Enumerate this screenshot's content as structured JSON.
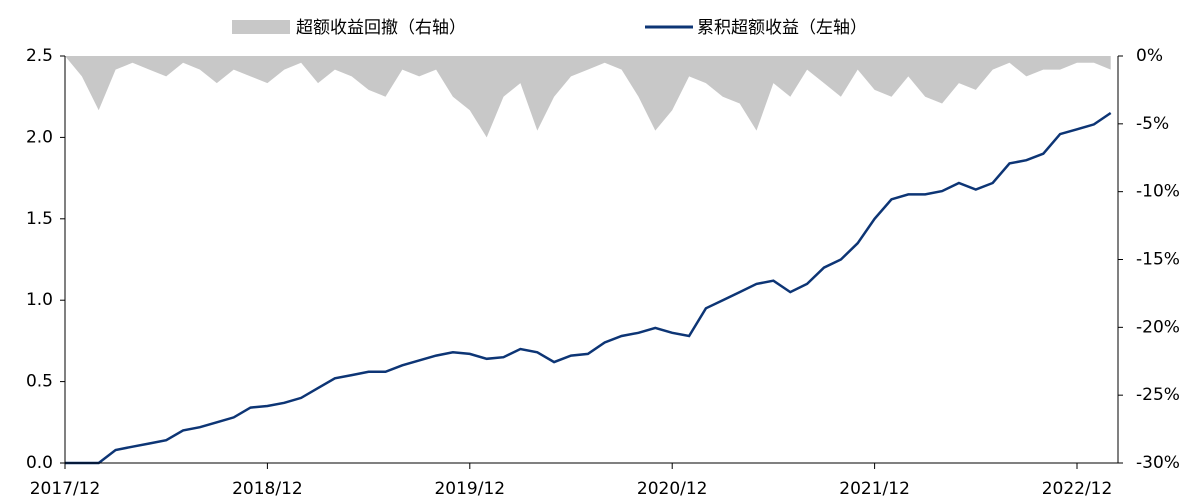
{
  "chart_data": {
    "type": "line-area",
    "categories": [
      "2017/12",
      null,
      null,
      null,
      null,
      null,
      null,
      null,
      null,
      null,
      null,
      null,
      "2018/12",
      null,
      null,
      null,
      null,
      null,
      null,
      null,
      null,
      null,
      null,
      null,
      "2019/12",
      null,
      null,
      null,
      null,
      null,
      null,
      null,
      null,
      null,
      null,
      null,
      "2020/12",
      null,
      null,
      null,
      null,
      null,
      null,
      null,
      null,
      null,
      null,
      null,
      "2021/12",
      null,
      null,
      null,
      null,
      null,
      null,
      null,
      null,
      null,
      null,
      null,
      "2022/12",
      null,
      null
    ],
    "series": [
      {
        "name": "超额收益回撤（右轴）",
        "type": "area",
        "axis": "y2",
        "color": "#c8c8c8",
        "values": [
          0,
          -1.5,
          -4,
          -1,
          -0.5,
          -1,
          -1.5,
          -0.5,
          -1,
          -2,
          -1,
          -1.5,
          -2,
          -1,
          -0.5,
          -2,
          -1,
          -1.5,
          -2.5,
          -3,
          -1,
          -1.5,
          -1,
          -3,
          -4,
          -6,
          -3,
          -2,
          -5.5,
          -3,
          -1.5,
          -1,
          -0.5,
          -1,
          -3,
          -5.5,
          -4,
          -1.5,
          -2,
          -3,
          -3.5,
          -5.5,
          -2,
          -3,
          -1,
          -2,
          -3,
          -1,
          -2.5,
          -3,
          -1.5,
          -3,
          -3.5,
          -2,
          -2.5,
          -1,
          -0.5,
          -1.5,
          -1,
          -1,
          -0.5,
          -0.5,
          -1
        ]
      },
      {
        "name": "累积超额收益（左轴）",
        "type": "line",
        "axis": "y",
        "color": "#0d3575",
        "values": [
          0,
          0,
          0,
          0.08,
          0.1,
          0.12,
          0.14,
          0.2,
          0.22,
          0.25,
          0.28,
          0.34,
          0.35,
          0.37,
          0.4,
          0.46,
          0.52,
          0.54,
          0.56,
          0.56,
          0.6,
          0.63,
          0.66,
          0.68,
          0.67,
          0.64,
          0.65,
          0.7,
          0.68,
          0.62,
          0.66,
          0.67,
          0.74,
          0.78,
          0.8,
          0.83,
          0.8,
          0.78,
          0.95,
          1.0,
          1.05,
          1.1,
          1.12,
          1.05,
          1.1,
          1.2,
          1.25,
          1.35,
          1.5,
          1.62,
          1.65,
          1.65,
          1.67,
          1.72,
          1.68,
          1.72,
          1.84,
          1.86,
          1.9,
          2.02,
          2.05,
          2.08,
          2.15
        ]
      }
    ],
    "ylim": [
      0,
      2.5
    ],
    "yticks": [
      {
        "value": 0,
        "label": "0.0"
      },
      0.5,
      {
        "value": 1,
        "label": "1.0"
      },
      1.5,
      {
        "value": 2,
        "label": "2.0"
      },
      2.5
    ],
    "y2lim": [
      -30,
      0
    ],
    "y2ticks": [
      {
        "value": -30,
        "label": "-30%"
      },
      {
        "value": -25,
        "label": "-25%"
      },
      {
        "value": -20,
        "label": "-20%"
      },
      {
        "value": -15,
        "label": "-15%"
      },
      {
        "value": -10,
        "label": "-10%"
      },
      {
        "value": -5,
        "label": "-5%"
      },
      {
        "value": 0,
        "label": "0%"
      }
    ],
    "legend": "top"
  }
}
